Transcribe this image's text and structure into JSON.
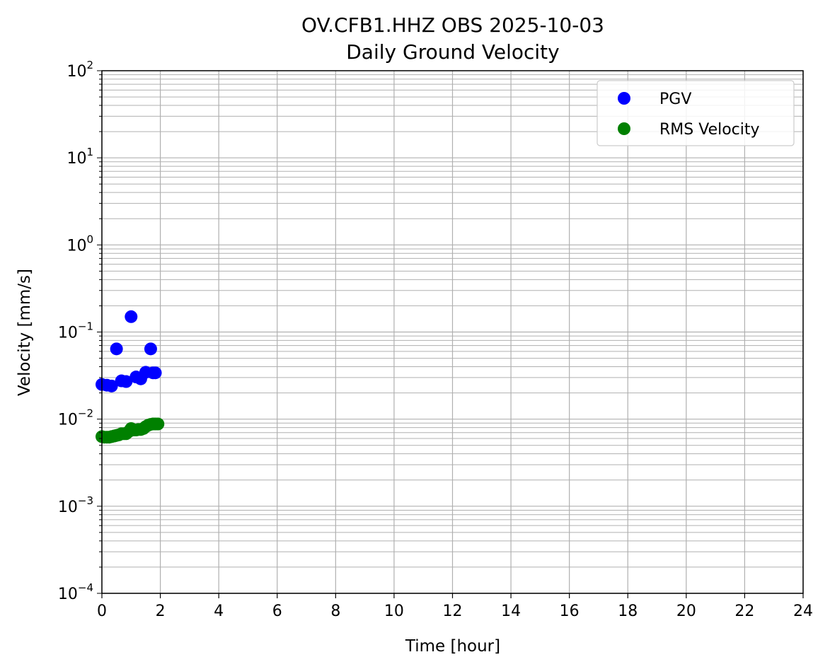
{
  "chart_data": {
    "type": "scatter",
    "title": "OV.CFB1.HHZ OBS 2025-10-03",
    "subtitle": "Daily Ground Velocity",
    "xlabel": "Time [hour]",
    "ylabel": "Velocity [mm/s]",
    "xlim": [
      0,
      24
    ],
    "ylim": [
      0.0001,
      100
    ],
    "yscale": "log",
    "grid": true,
    "legend_position": "top-right",
    "x_ticks": [
      "0",
      "2",
      "4",
      "6",
      "8",
      "10",
      "12",
      "14",
      "16",
      "18",
      "20",
      "22",
      "24"
    ],
    "y_ticks": [
      {
        "base": "10",
        "exp": "−4",
        "value": 0.0001
      },
      {
        "base": "10",
        "exp": "−3",
        "value": 0.001
      },
      {
        "base": "10",
        "exp": "−2",
        "value": 0.01
      },
      {
        "base": "10",
        "exp": "−1",
        "value": 0.1
      },
      {
        "base": "10",
        "exp": "0",
        "value": 1
      },
      {
        "base": "10",
        "exp": "1",
        "value": 10
      },
      {
        "base": "10",
        "exp": "2",
        "value": 100
      }
    ],
    "series": [
      {
        "name": "PGV",
        "color": "#0000ff",
        "points": [
          {
            "x": 0.0,
            "y": 0.025
          },
          {
            "x": 0.17,
            "y": 0.0245
          },
          {
            "x": 0.33,
            "y": 0.024
          },
          {
            "x": 0.5,
            "y": 0.064
          },
          {
            "x": 0.67,
            "y": 0.0275
          },
          {
            "x": 0.83,
            "y": 0.027
          },
          {
            "x": 1.0,
            "y": 0.15
          },
          {
            "x": 1.17,
            "y": 0.0305
          },
          {
            "x": 1.33,
            "y": 0.029
          },
          {
            "x": 1.5,
            "y": 0.0345
          },
          {
            "x": 1.67,
            "y": 0.064
          },
          {
            "x": 1.75,
            "y": 0.034
          },
          {
            "x": 1.83,
            "y": 0.034
          }
        ]
      },
      {
        "name": "RMS Velocity",
        "color": "#008000",
        "points": [
          {
            "x": 0.0,
            "y": 0.0063
          },
          {
            "x": 0.08,
            "y": 0.0062
          },
          {
            "x": 0.17,
            "y": 0.0062
          },
          {
            "x": 0.25,
            "y": 0.0062
          },
          {
            "x": 0.33,
            "y": 0.0063
          },
          {
            "x": 0.42,
            "y": 0.0064
          },
          {
            "x": 0.5,
            "y": 0.0065
          },
          {
            "x": 0.58,
            "y": 0.0066
          },
          {
            "x": 0.67,
            "y": 0.0068
          },
          {
            "x": 0.75,
            "y": 0.0068
          },
          {
            "x": 0.83,
            "y": 0.0068
          },
          {
            "x": 0.92,
            "y": 0.0072
          },
          {
            "x": 1.0,
            "y": 0.0078
          },
          {
            "x": 1.08,
            "y": 0.0075
          },
          {
            "x": 1.17,
            "y": 0.0075
          },
          {
            "x": 1.25,
            "y": 0.0076
          },
          {
            "x": 1.33,
            "y": 0.0076
          },
          {
            "x": 1.42,
            "y": 0.0078
          },
          {
            "x": 1.5,
            "y": 0.0082
          },
          {
            "x": 1.58,
            "y": 0.0085
          },
          {
            "x": 1.67,
            "y": 0.0087
          },
          {
            "x": 1.75,
            "y": 0.0088
          },
          {
            "x": 1.83,
            "y": 0.0088
          },
          {
            "x": 1.92,
            "y": 0.0088
          }
        ]
      }
    ]
  }
}
